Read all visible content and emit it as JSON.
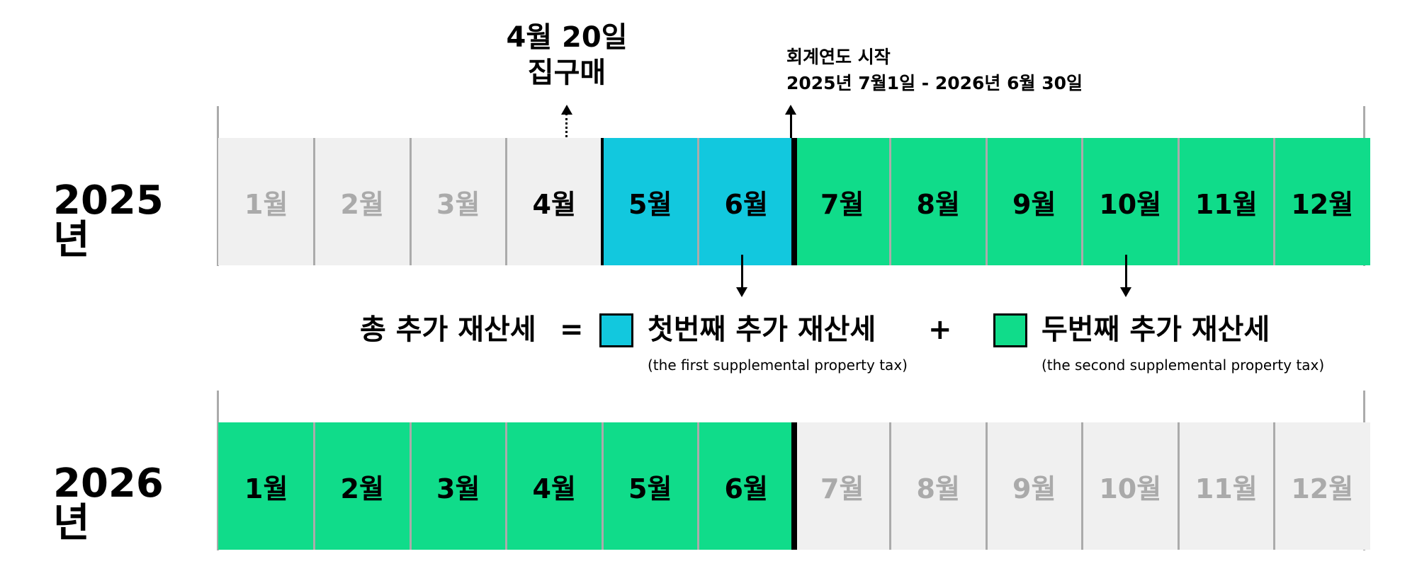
{
  "colors": {
    "first_tax": "#12c8de",
    "second_tax": "#10dc8a",
    "inactive": "#f0f0f0",
    "inactive_text": "#aaaaaa",
    "separator": "#ababab"
  },
  "year_2025": {
    "label": "2025년",
    "months": [
      {
        "label": "1월",
        "status": "past"
      },
      {
        "label": "2월",
        "status": "past"
      },
      {
        "label": "3월",
        "status": "past"
      },
      {
        "label": "4월",
        "status": "pending"
      },
      {
        "label": "5월",
        "status": "first"
      },
      {
        "label": "6월",
        "status": "first"
      },
      {
        "label": "7월",
        "status": "second"
      },
      {
        "label": "8월",
        "status": "second"
      },
      {
        "label": "9월",
        "status": "second"
      },
      {
        "label": "10월",
        "status": "second"
      },
      {
        "label": "11월",
        "status": "second"
      },
      {
        "label": "12월",
        "status": "second"
      }
    ]
  },
  "year_2026": {
    "label": "2026년",
    "months": [
      {
        "label": "1월",
        "status": "second"
      },
      {
        "label": "2월",
        "status": "second"
      },
      {
        "label": "3월",
        "status": "second"
      },
      {
        "label": "4월",
        "status": "second"
      },
      {
        "label": "5월",
        "status": "second"
      },
      {
        "label": "6월",
        "status": "second"
      },
      {
        "label": "7월",
        "status": "future"
      },
      {
        "label": "8월",
        "status": "future"
      },
      {
        "label": "9월",
        "status": "future"
      },
      {
        "label": "10월",
        "status": "future"
      },
      {
        "label": "11월",
        "status": "future"
      },
      {
        "label": "12월",
        "status": "future"
      }
    ]
  },
  "purchase_annotation": {
    "line1": "4월 20일",
    "line2": "집구매"
  },
  "fiscal_annotation": {
    "line1": "회계연도 시작",
    "line2": "2025년 7월1일 - 2026년 6월 30일"
  },
  "equation": {
    "total": "총 추가 재산세",
    "equals": "=",
    "first_label": "첫번째 추가 재산세",
    "first_sub": "(the first supplemental property tax)",
    "plus": "+",
    "second_label": "두번째 추가 재산세",
    "second_sub": "(the second supplemental property tax)"
  }
}
